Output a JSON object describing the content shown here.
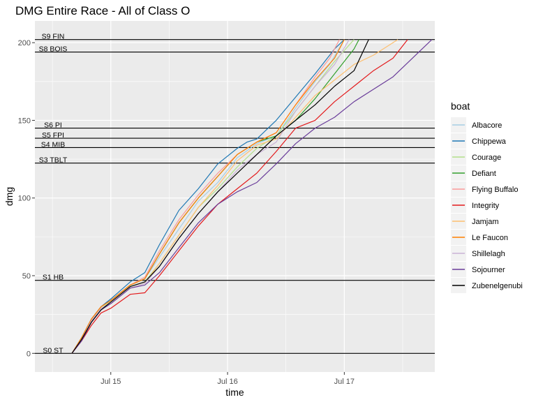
{
  "chart_data": {
    "type": "line",
    "title": "DMG Entire Race - All of Class O",
    "xlabel": "time",
    "ylabel": "dmg",
    "xlim_hours": [
      -15.6,
      66.6
    ],
    "ylim": [
      -12,
      214
    ],
    "x_ticks": [
      {
        "label": "Jul 15",
        "hours": 0
      },
      {
        "label": "Jul 16",
        "hours": 24
      },
      {
        "label": "Jul 17",
        "hours": 48
      }
    ],
    "y_ticks": [
      0,
      50,
      100,
      150,
      200
    ],
    "grid": true,
    "legend": {
      "title": "boat",
      "placement": "right"
    },
    "reference_lines": [
      {
        "label": "S0 ST",
        "y": 0
      },
      {
        "label": "S1 HB",
        "y": 47
      },
      {
        "label": "S3 TBLT",
        "y": 122.5
      },
      {
        "label": "S4 MIB",
        "y": 132.5
      },
      {
        "label": "S5 FPI",
        "y": 138.5
      },
      {
        "label": "S6 PI",
        "y": 145
      },
      {
        "label": "S8 BOIS",
        "y": 194
      },
      {
        "label": "S9 FIN",
        "y": 202
      }
    ],
    "series": [
      {
        "name": "Albacore",
        "color": "#a6cee3",
        "points": [
          [
            -8,
            0
          ],
          [
            -6,
            10
          ],
          [
            -4,
            22
          ],
          [
            -2,
            30
          ],
          [
            0,
            34
          ],
          [
            4,
            44
          ],
          [
            7,
            48
          ],
          [
            10,
            62
          ],
          [
            14,
            80
          ],
          [
            18,
            98
          ],
          [
            22,
            110
          ],
          [
            26,
            126
          ],
          [
            30,
            135
          ],
          [
            34,
            140
          ],
          [
            38,
            158
          ],
          [
            42,
            175
          ],
          [
            45,
            186
          ],
          [
            48,
            202
          ]
        ]
      },
      {
        "name": "Chippewa",
        "color": "#1f78b4",
        "points": [
          [
            -8,
            0
          ],
          [
            -6,
            10
          ],
          [
            -4,
            22
          ],
          [
            -2,
            30
          ],
          [
            0,
            35
          ],
          [
            4,
            46
          ],
          [
            7,
            52
          ],
          [
            10,
            70
          ],
          [
            14,
            92
          ],
          [
            18,
            106
          ],
          [
            22,
            122
          ],
          [
            26,
            132
          ],
          [
            28,
            136
          ],
          [
            30,
            138
          ],
          [
            34,
            150
          ],
          [
            38,
            165
          ],
          [
            42,
            180
          ],
          [
            46,
            196
          ],
          [
            48,
            202
          ]
        ]
      },
      {
        "name": "Courage",
        "color": "#b2df8a",
        "points": [
          [
            -8,
            0
          ],
          [
            -6,
            9
          ],
          [
            -4,
            21
          ],
          [
            -2,
            29
          ],
          [
            0,
            33
          ],
          [
            4,
            43
          ],
          [
            7,
            46
          ],
          [
            10,
            58
          ],
          [
            14,
            76
          ],
          [
            18,
            94
          ],
          [
            22,
            106
          ],
          [
            26,
            120
          ],
          [
            30,
            132
          ],
          [
            34,
            140
          ],
          [
            38,
            156
          ],
          [
            42,
            172
          ],
          [
            46,
            188
          ],
          [
            50,
            202
          ]
        ]
      },
      {
        "name": "Defiant",
        "color": "#33a02c",
        "points": [
          [
            -8,
            0
          ],
          [
            -6,
            10
          ],
          [
            -4,
            22
          ],
          [
            -2,
            30
          ],
          [
            0,
            34
          ],
          [
            4,
            44
          ],
          [
            7,
            48
          ],
          [
            10,
            64
          ],
          [
            14,
            84
          ],
          [
            18,
            100
          ],
          [
            22,
            114
          ],
          [
            26,
            128
          ],
          [
            30,
            136
          ],
          [
            34,
            140
          ],
          [
            38,
            150
          ],
          [
            42,
            164
          ],
          [
            46,
            180
          ],
          [
            50,
            196
          ],
          [
            51,
            202
          ]
        ]
      },
      {
        "name": "Flying Buffalo",
        "color": "#fb9a99",
        "points": [
          [
            -8,
            0
          ],
          [
            -6,
            10
          ],
          [
            -4,
            22
          ],
          [
            -2,
            30
          ],
          [
            0,
            34
          ],
          [
            4,
            44
          ],
          [
            7,
            49
          ],
          [
            10,
            66
          ],
          [
            14,
            86
          ],
          [
            18,
            102
          ],
          [
            22,
            116
          ],
          [
            26,
            128
          ],
          [
            30,
            136
          ],
          [
            34,
            142
          ],
          [
            38,
            160
          ],
          [
            42,
            178
          ],
          [
            45,
            190
          ],
          [
            47,
            202
          ]
        ]
      },
      {
        "name": "Integrity",
        "color": "#e31a1c",
        "points": [
          [
            -8,
            0
          ],
          [
            -6,
            8
          ],
          [
            -4,
            18
          ],
          [
            -2,
            26
          ],
          [
            0,
            29
          ],
          [
            4,
            38
          ],
          [
            7,
            39
          ],
          [
            10,
            50
          ],
          [
            14,
            66
          ],
          [
            18,
            82
          ],
          [
            22,
            96
          ],
          [
            26,
            106
          ],
          [
            30,
            116
          ],
          [
            34,
            130
          ],
          [
            38,
            145
          ],
          [
            42,
            150
          ],
          [
            46,
            162
          ],
          [
            50,
            172
          ],
          [
            54,
            182
          ],
          [
            58,
            190
          ],
          [
            61,
            202
          ]
        ]
      },
      {
        "name": "Jamjam",
        "color": "#fdbf6f",
        "points": [
          [
            -8,
            0
          ],
          [
            -6,
            9
          ],
          [
            -4,
            21
          ],
          [
            -2,
            29
          ],
          [
            0,
            32
          ],
          [
            4,
            42
          ],
          [
            7,
            45
          ],
          [
            10,
            58
          ],
          [
            14,
            76
          ],
          [
            18,
            94
          ],
          [
            22,
            108
          ],
          [
            26,
            124
          ],
          [
            30,
            134
          ],
          [
            34,
            138
          ],
          [
            38,
            152
          ],
          [
            42,
            166
          ],
          [
            46,
            176
          ],
          [
            50,
            186
          ],
          [
            54,
            192
          ],
          [
            59,
            202
          ]
        ]
      },
      {
        "name": "Le Faucon",
        "color": "#ff7f00",
        "points": [
          [
            -8,
            0
          ],
          [
            -6,
            10
          ],
          [
            -4,
            22
          ],
          [
            -2,
            30
          ],
          [
            0,
            34
          ],
          [
            4,
            44
          ],
          [
            7,
            48
          ],
          [
            10,
            64
          ],
          [
            14,
            84
          ],
          [
            18,
            100
          ],
          [
            22,
            114
          ],
          [
            26,
            128
          ],
          [
            30,
            136
          ],
          [
            34,
            142
          ],
          [
            38,
            160
          ],
          [
            42,
            176
          ],
          [
            46,
            190
          ],
          [
            48,
            202
          ]
        ]
      },
      {
        "name": "Shillelagh",
        "color": "#cab2d6",
        "points": [
          [
            -8,
            0
          ],
          [
            -6,
            9
          ],
          [
            -4,
            21
          ],
          [
            -2,
            29
          ],
          [
            0,
            32
          ],
          [
            4,
            42
          ],
          [
            7,
            45
          ],
          [
            10,
            56
          ],
          [
            14,
            74
          ],
          [
            18,
            90
          ],
          [
            22,
            104
          ],
          [
            26,
            118
          ],
          [
            30,
            128
          ],
          [
            34,
            136
          ],
          [
            38,
            156
          ],
          [
            42,
            172
          ],
          [
            46,
            186
          ],
          [
            49,
            202
          ]
        ]
      },
      {
        "name": "Sojourner",
        "color": "#6a3d9a",
        "points": [
          [
            -8,
            0
          ],
          [
            -6,
            8
          ],
          [
            -4,
            20
          ],
          [
            -2,
            28
          ],
          [
            0,
            32
          ],
          [
            4,
            42
          ],
          [
            7,
            44
          ],
          [
            10,
            52
          ],
          [
            14,
            68
          ],
          [
            18,
            84
          ],
          [
            22,
            96
          ],
          [
            26,
            104
          ],
          [
            30,
            110
          ],
          [
            34,
            122
          ],
          [
            38,
            135
          ],
          [
            42,
            145
          ],
          [
            46,
            152
          ],
          [
            50,
            162
          ],
          [
            54,
            170
          ],
          [
            58,
            178
          ],
          [
            62,
            190
          ],
          [
            66,
            202
          ]
        ]
      },
      {
        "name": "Zubenelgenubi",
        "color": "#000000",
        "points": [
          [
            -8,
            0
          ],
          [
            -6,
            9
          ],
          [
            -4,
            20
          ],
          [
            -2,
            28
          ],
          [
            0,
            33
          ],
          [
            4,
            43
          ],
          [
            7,
            46
          ],
          [
            10,
            56
          ],
          [
            14,
            74
          ],
          [
            18,
            90
          ],
          [
            22,
            104
          ],
          [
            26,
            116
          ],
          [
            30,
            128
          ],
          [
            34,
            140
          ],
          [
            38,
            150
          ],
          [
            42,
            160
          ],
          [
            46,
            172
          ],
          [
            50,
            182
          ],
          [
            53,
            202
          ]
        ]
      }
    ]
  }
}
